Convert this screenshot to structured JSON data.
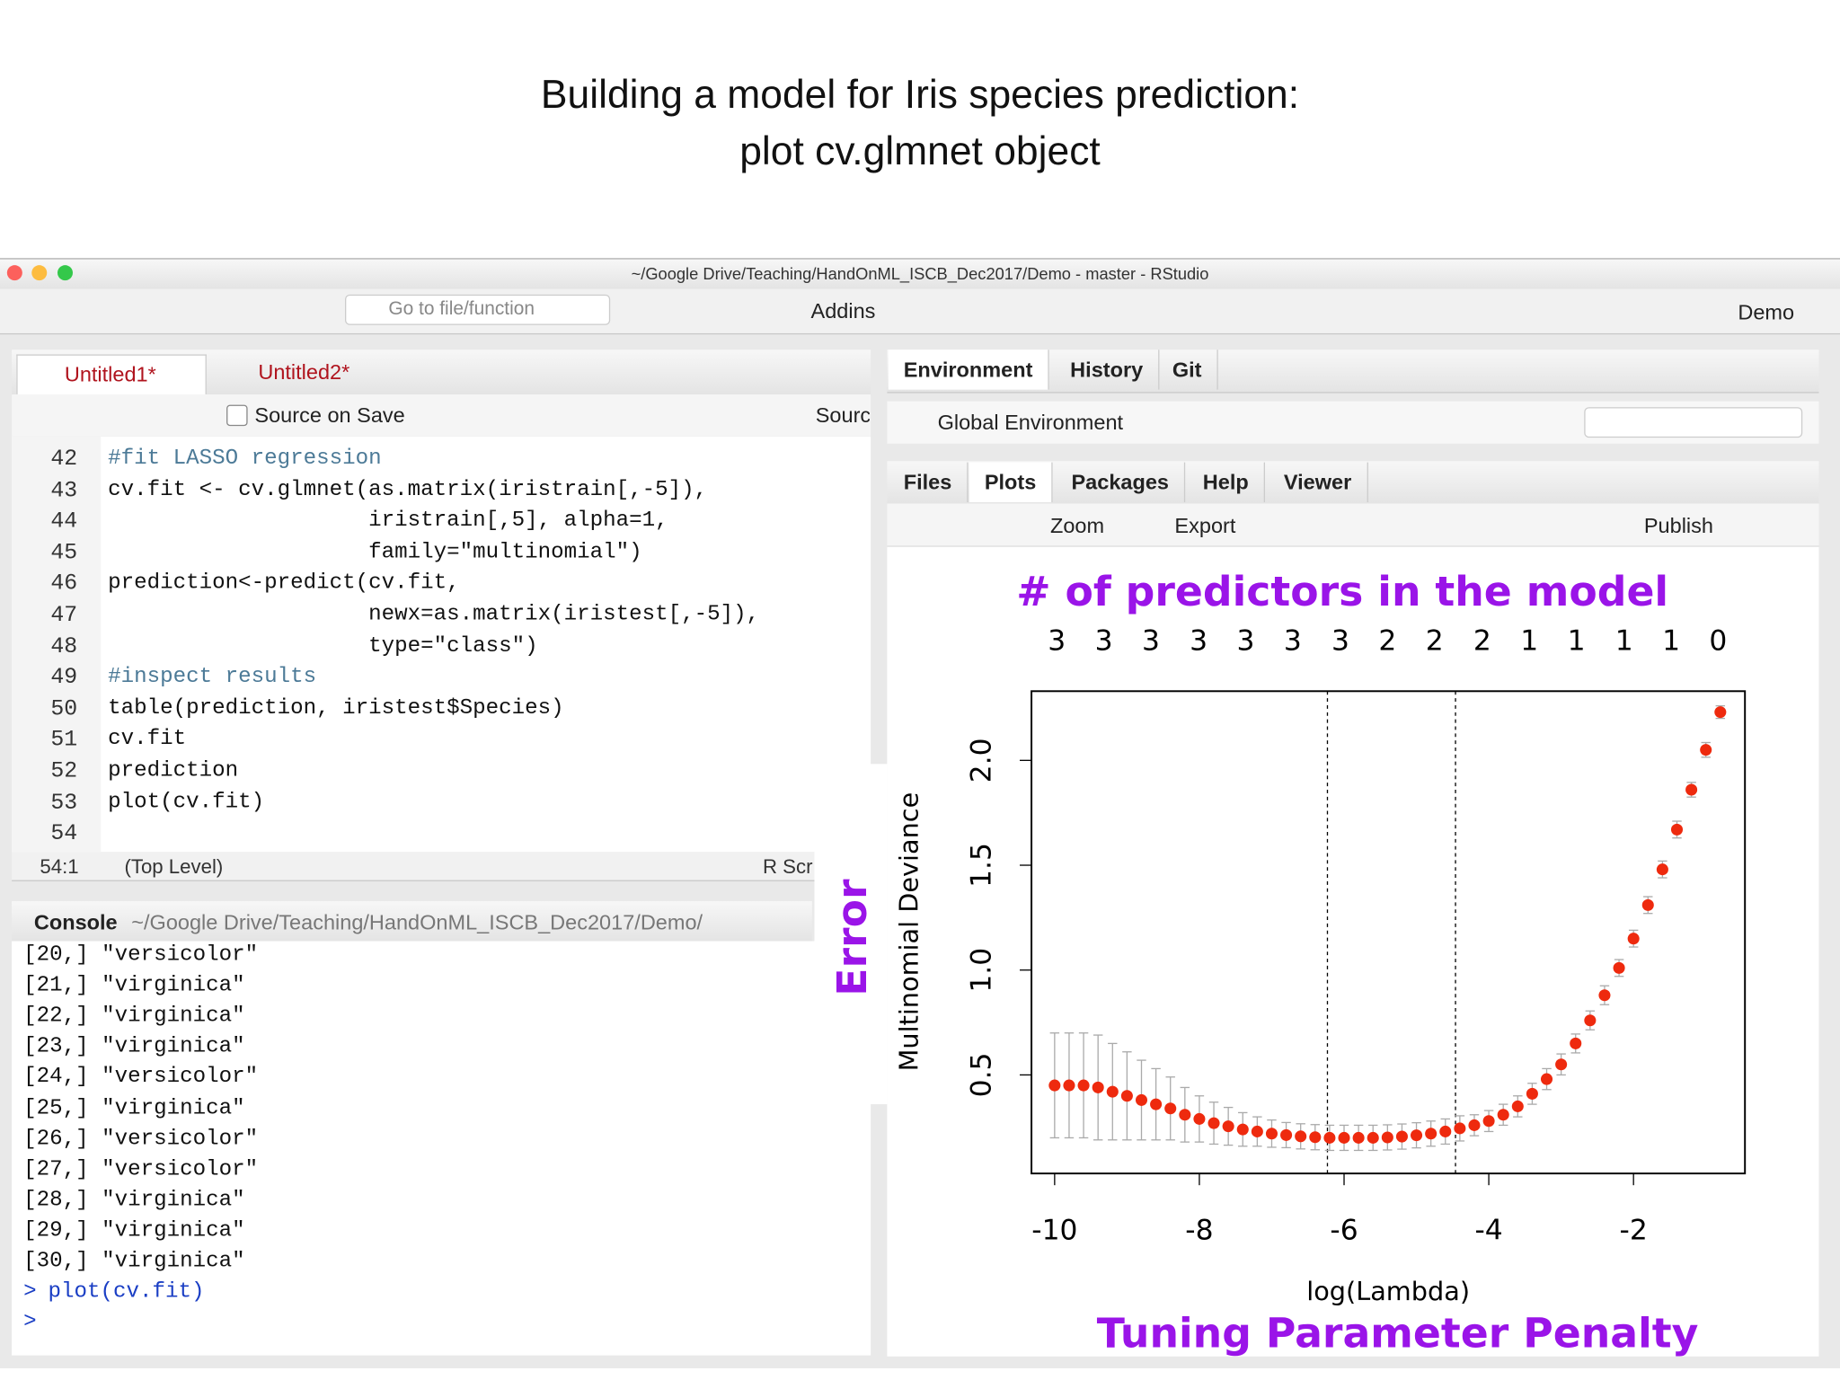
{
  "slide": {
    "title_line1": "Building a model for Iris species prediction:",
    "title_line2": "plot cv.glmnet object"
  },
  "window": {
    "title": "~/Google Drive/Teaching/HandOnML_ISCB_Dec2017/Demo - master - RStudio",
    "toolbar": {
      "goto": "Go to file/function",
      "addins": "Addins",
      "project": "Demo"
    }
  },
  "editor": {
    "tabs": [
      "Untitled1*",
      "Untitled2*"
    ],
    "source_on_save": "Source on Save",
    "source": "Sourc",
    "line_numbers": [
      "42",
      "43",
      "44",
      "45",
      "46",
      "47",
      "48",
      "49",
      "50",
      "51",
      "52",
      "53",
      "54"
    ],
    "lines": [
      "#fit LASSO regression",
      "cv.fit <- cv.glmnet(as.matrix(iristrain[,-5]),",
      "                    iristrain[,5], alpha=1,",
      "                    family=\"multinomial\")",
      "prediction<-predict(cv.fit,",
      "                    newx=as.matrix(iristest[,-5]),",
      "                    type=\"class\")",
      "#inspect results",
      "table(prediction, iristest$Species)",
      "cv.fit",
      "prediction",
      "plot(cv.fit)"
    ],
    "status": {
      "position": "54:1",
      "scope": "(Top Level)",
      "file_type": "R Scr"
    }
  },
  "console": {
    "title": "Console",
    "path": "~/Google Drive/Teaching/HandOnML_ISCB_Dec2017/Demo/",
    "lines": [
      "[20,] \"versicolor\"",
      "[21,] \"virginica\"",
      "[22,] \"virginica\"",
      "[23,] \"virginica\"",
      "[24,] \"versicolor\"",
      "[25,] \"virginica\"",
      "[26,] \"versicolor\"",
      "[27,] \"versicolor\"",
      "[28,] \"virginica\"",
      "[29,] \"virginica\"",
      "[30,] \"virginica\""
    ],
    "prompt": ">",
    "command": "plot(cv.fit)"
  },
  "environment": {
    "tabs": [
      "Environment",
      "History",
      "Git"
    ],
    "scope": "Global Environment"
  },
  "plots_pane": {
    "tabs": [
      "Files",
      "Plots",
      "Packages",
      "Help",
      "Viewer"
    ],
    "zoom": "Zoom",
    "export": "Export",
    "publish": "Publish"
  },
  "chart_data": {
    "type": "scatter",
    "xlabel": "log(Lambda)",
    "ylabel": "Multinomial Deviance",
    "annotations": {
      "top": "# of predictors in the model",
      "left": "Error",
      "bottom": "Tuning Parameter Penalty"
    },
    "color": "#ee2a0e",
    "error_color": "#aaaaaa",
    "x": [
      -10,
      -9.8,
      -9.6,
      -9.4,
      -9.2,
      -9.0,
      -8.8,
      -8.6,
      -8.4,
      -8.2,
      -8.0,
      -7.8,
      -7.6,
      -7.4,
      -7.2,
      -7.0,
      -6.8,
      -6.6,
      -6.4,
      -6.2,
      -6.0,
      -5.8,
      -5.6,
      -5.4,
      -5.2,
      -5.0,
      -4.8,
      -4.6,
      -4.4,
      -4.2,
      -4.0,
      -3.8,
      -3.6,
      -3.4,
      -3.2,
      -3.0,
      -2.8,
      -2.6,
      -2.4,
      -2.2,
      -2.0,
      -1.8,
      -1.6,
      -1.4,
      -1.2,
      -1.0,
      -0.8
    ],
    "values": [
      0.45,
      0.45,
      0.45,
      0.44,
      0.42,
      0.4,
      0.38,
      0.36,
      0.34,
      0.31,
      0.29,
      0.27,
      0.255,
      0.24,
      0.23,
      0.22,
      0.213,
      0.207,
      0.203,
      0.2,
      0.2,
      0.2,
      0.2,
      0.202,
      0.206,
      0.212,
      0.22,
      0.23,
      0.245,
      0.26,
      0.28,
      0.31,
      0.35,
      0.41,
      0.48,
      0.55,
      0.65,
      0.76,
      0.88,
      1.01,
      1.15,
      1.31,
      1.48,
      1.67,
      1.86,
      2.05,
      2.23
    ],
    "errors": [
      0.25,
      0.25,
      0.25,
      0.25,
      0.23,
      0.21,
      0.19,
      0.17,
      0.15,
      0.13,
      0.11,
      0.1,
      0.09,
      0.08,
      0.07,
      0.065,
      0.06,
      0.06,
      0.06,
      0.06,
      0.06,
      0.06,
      0.06,
      0.06,
      0.06,
      0.06,
      0.06,
      0.06,
      0.06,
      0.05,
      0.05,
      0.05,
      0.05,
      0.05,
      0.05,
      0.05,
      0.045,
      0.045,
      0.045,
      0.04,
      0.04,
      0.04,
      0.04,
      0.04,
      0.035,
      0.035,
      0.03
    ],
    "vlines": [
      -6.23,
      -4.46
    ],
    "xlim": [
      -10.32,
      -0.46
    ],
    "ylim": [
      0.03,
      2.33
    ],
    "xticks": [
      -10,
      -8,
      -6,
      -4,
      -2
    ],
    "yticks": [
      0.5,
      {
        "value": 1.0,
        "label": "1.0"
      },
      1.5,
      {
        "value": 2.0,
        "label": "2.0"
      }
    ],
    "top_ticks": [
      {
        "value": -9.97,
        "label": "3"
      },
      {
        "value": -9.32,
        "label": "3"
      },
      {
        "value": -8.67,
        "label": "3"
      },
      {
        "value": -8.01,
        "label": "3"
      },
      {
        "value": -7.36,
        "label": "3"
      },
      {
        "value": -6.71,
        "label": "3"
      },
      {
        "value": -6.05,
        "label": "3"
      },
      {
        "value": -5.4,
        "label": "2"
      },
      {
        "value": -4.75,
        "label": "2"
      },
      {
        "value": -4.09,
        "label": "2"
      },
      {
        "value": -3.44,
        "label": "1"
      },
      {
        "value": -2.79,
        "label": "1"
      },
      {
        "value": -2.13,
        "label": "1"
      },
      {
        "value": -1.48,
        "label": "1"
      },
      {
        "value": -0.83,
        "label": "0"
      }
    ]
  }
}
